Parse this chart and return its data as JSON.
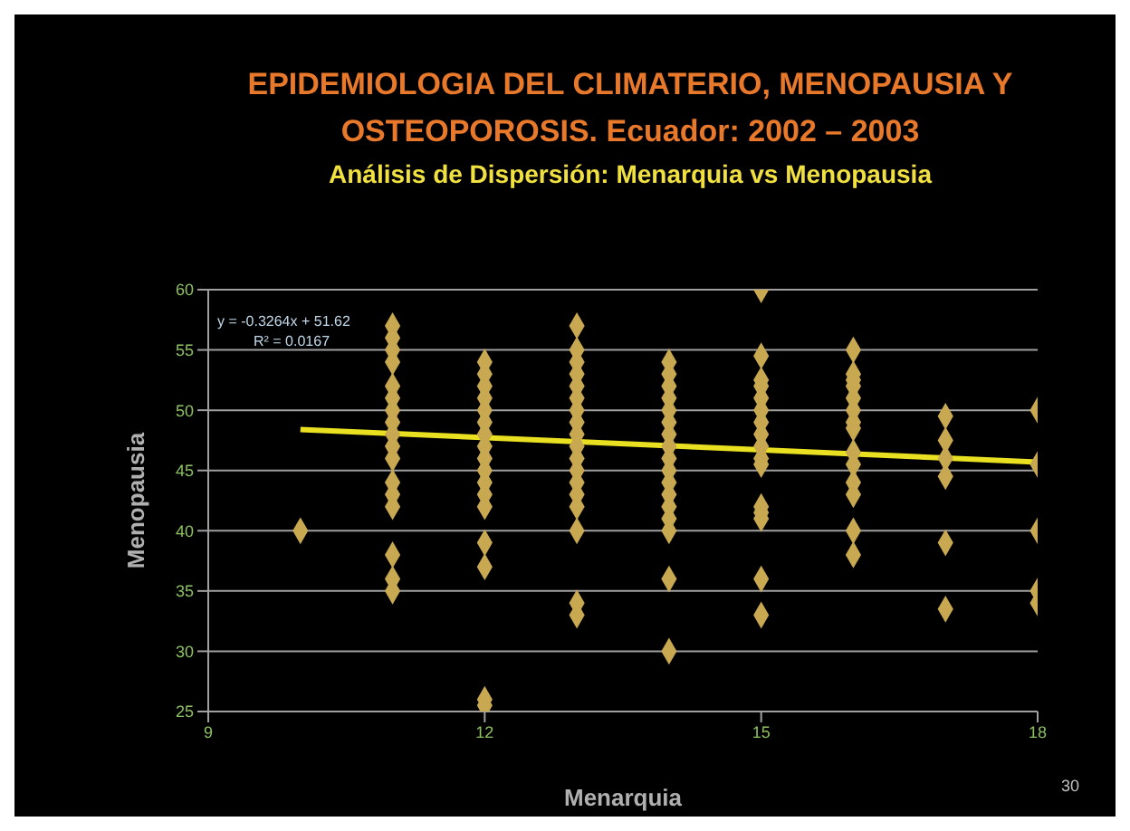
{
  "chart_data": {
    "type": "scatter",
    "title": "EPIDEMIOLOGIA DEL CLIMATERIO, MENOPAUSIA Y OSTEOPOROSIS. Ecuador: 2002 – 2003",
    "subtitle": "Análisis de Dispersión: Menarquia vs Menopausia",
    "xlabel": "Menarquia",
    "ylabel": "Menopausia",
    "annotations": [
      "y = -0.3264x + 51.62",
      "R² = 0.0167",
      "30"
    ],
    "xlim": [
      9,
      18
    ],
    "xticks": [
      9,
      12,
      15,
      18
    ],
    "ylim": [
      25,
      60
    ],
    "yticks": [
      25,
      30,
      35,
      40,
      45,
      50,
      55,
      60
    ],
    "grid": "y",
    "series": [
      {
        "color": "#c8a850",
        "marker": "diamond",
        "x": [
          10,
          11,
          11,
          11,
          11,
          11,
          11,
          11,
          11,
          11,
          11,
          11,
          11,
          11,
          11,
          11,
          11,
          11,
          12,
          12,
          12,
          12,
          12,
          12,
          12,
          12,
          12,
          12,
          12,
          12,
          12,
          12,
          12,
          12,
          12,
          13,
          13,
          13,
          13,
          13,
          13,
          13,
          13,
          13,
          13,
          13,
          13,
          13,
          13,
          13,
          13,
          13,
          13,
          14,
          14,
          14,
          14,
          14,
          14,
          14,
          14,
          14,
          14,
          14,
          14,
          14,
          14,
          14,
          14,
          14,
          15,
          15,
          15,
          15,
          15,
          15,
          15,
          15,
          15,
          15,
          15,
          15,
          15,
          15,
          15,
          15,
          16,
          16,
          16,
          16,
          16,
          16,
          16,
          16,
          16,
          16,
          16,
          16,
          16,
          16,
          17,
          17,
          17,
          17,
          17,
          17,
          18,
          18,
          18,
          18,
          18
        ],
        "values": [
          40,
          57,
          56,
          55,
          54,
          52,
          51,
          50,
          49,
          48,
          47,
          46,
          44,
          43,
          42,
          38,
          36,
          35,
          54,
          53,
          52,
          51,
          50,
          49,
          48,
          47,
          46,
          45,
          44,
          43,
          42,
          39,
          37,
          26,
          25.5,
          57,
          55,
          54,
          53,
          52,
          51,
          50,
          49,
          48,
          47,
          46,
          45,
          44,
          43,
          42,
          40,
          34,
          33,
          54,
          53,
          52,
          51,
          50,
          49,
          48,
          47,
          46,
          45,
          44,
          43,
          42,
          41,
          40,
          36,
          30,
          60,
          54.5,
          52.5,
          52,
          51,
          50,
          49,
          48,
          47,
          46,
          45.5,
          42,
          41.5,
          41,
          36,
          33,
          55,
          53,
          52.5,
          52,
          51,
          50,
          49,
          48.5,
          46.5,
          45.5,
          44,
          43,
          40,
          38,
          49.5,
          47.5,
          46,
          44.5,
          39,
          33.5,
          50,
          45.5,
          40,
          35,
          34
        ]
      },
      {
        "type": "line",
        "color": "#e8e020",
        "marker": "none",
        "line_style": "solid",
        "x": [
          10,
          18
        ],
        "values": [
          48.4,
          45.7
        ]
      }
    ]
  }
}
